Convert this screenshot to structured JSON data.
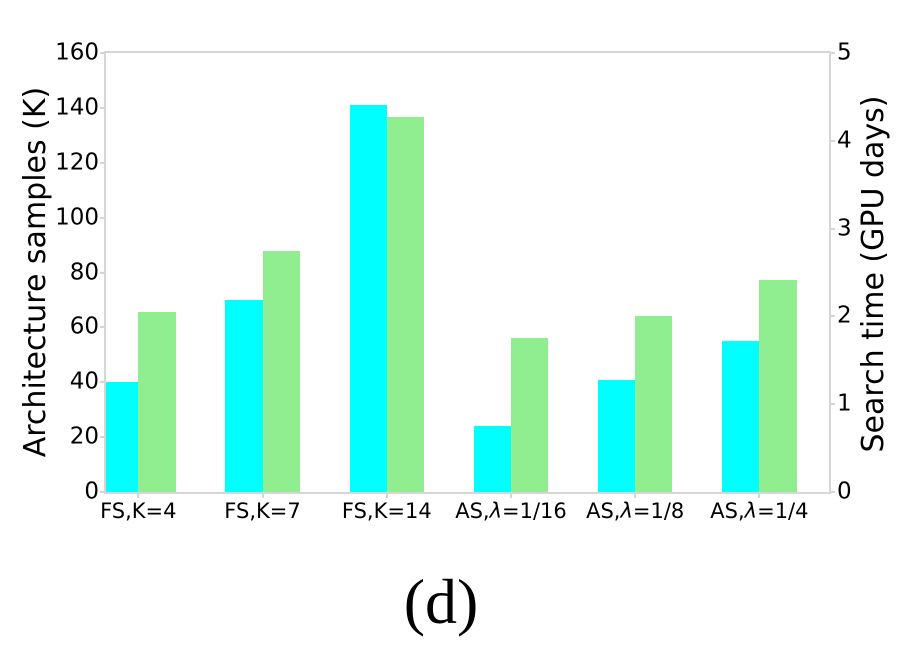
{
  "figure": {
    "caption": "(d)"
  },
  "chart_data": {
    "type": "bar",
    "title": "",
    "categories": [
      "FS,K=4",
      "FS,K=7",
      "FS,K=14",
      "AS,λ=1/16",
      "AS,λ=1/8",
      "AS,λ=1/4"
    ],
    "series": [
      {
        "name": "Architecture samples",
        "slug": "architecture-samples",
        "axis": "left",
        "color": "#00ffff",
        "values": [
          40,
          70,
          141,
          24,
          41,
          55
        ]
      },
      {
        "name": "Search time",
        "slug": "search-time",
        "axis": "right",
        "color": "#90ee90",
        "values": [
          2.05,
          2.75,
          4.27,
          1.76,
          2.01,
          2.41
        ]
      }
    ],
    "left_axis": {
      "label": "Architecture samples (K)",
      "min": 0,
      "max": 160,
      "ticks": [
        0,
        20,
        40,
        60,
        80,
        100,
        120,
        140,
        160
      ]
    },
    "right_axis": {
      "label": "Search time (GPU days)",
      "min": 0,
      "max": 5,
      "ticks": [
        0,
        1,
        2,
        3,
        4,
        5
      ]
    },
    "xlabel": "",
    "layout": {
      "xlim_units": [
        -0.26,
        5.56
      ],
      "bar_width_units": 0.3,
      "pair_alignment": "cyan bar left of tick, green bar right of tick, meeting at tick",
      "grid": false,
      "legend": false,
      "background": "#ffffff",
      "spine_color": "#d6d6d6",
      "text_color": "#000000"
    }
  }
}
